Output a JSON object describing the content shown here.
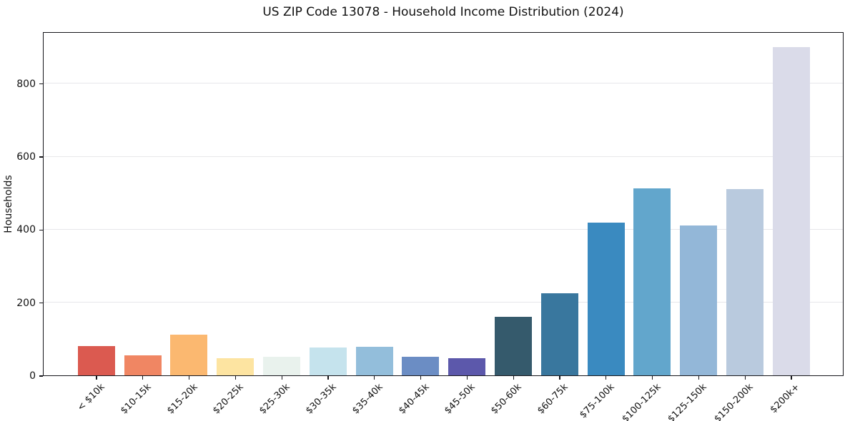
{
  "chart_data": {
    "type": "bar",
    "title": "US ZIP Code 13078 - Household Income Distribution (2024)",
    "xlabel": "",
    "ylabel": "Households",
    "categories": [
      "< $10k",
      "$10-15k",
      "$15-20k",
      "$20-25k",
      "$25-30k",
      "$30-35k",
      "$35-40k",
      "$40-45k",
      "$45-50k",
      "$50-60k",
      "$60-75k",
      "$75-100k",
      "$100-125k",
      "$125-150k",
      "$150-200k",
      "$200k+"
    ],
    "values": [
      80,
      55,
      111,
      47,
      51,
      76,
      78,
      51,
      47,
      160,
      225,
      419,
      513,
      411,
      510,
      900
    ],
    "bar_colors": [
      "#db5a50",
      "#f08663",
      "#fbb870",
      "#fde4a1",
      "#e9f2ed",
      "#c5e3ed",
      "#93bedb",
      "#6b8dc4",
      "#5c58ab",
      "#355a6c",
      "#39779e",
      "#3a8ac0",
      "#62a6cc",
      "#93b7d8",
      "#b9cade",
      "#dadbe9"
    ],
    "ylim": [
      0,
      942
    ],
    "yticks": [
      0,
      200,
      400,
      600,
      800
    ],
    "grid": "horizontal",
    "grid_color": "#e7e7ea",
    "axis_color": "#15151a",
    "background": "#ffffff",
    "legend": "none"
  }
}
